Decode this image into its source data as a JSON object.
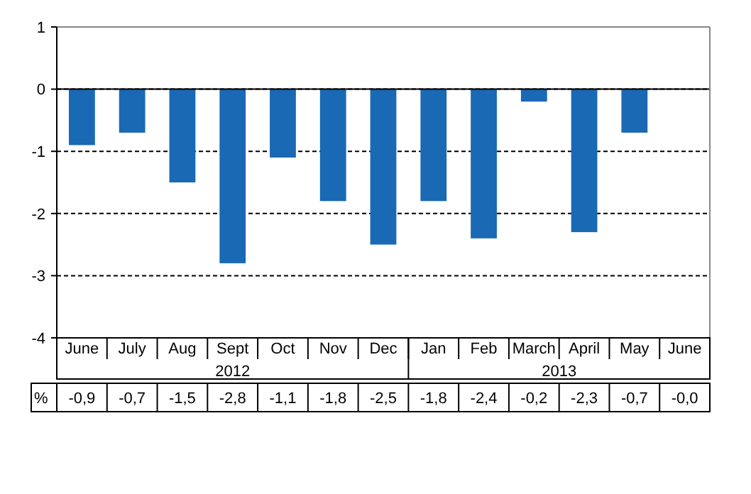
{
  "chart_data": {
    "type": "bar",
    "categories": [
      "June",
      "July",
      "Aug",
      "Sept",
      "Oct",
      "Nov",
      "Dec",
      "Jan",
      "Feb",
      "March",
      "April",
      "May",
      "June"
    ],
    "series": [
      {
        "name": "%",
        "color": "#1a69b4",
        "values": [
          -0.9,
          -0.7,
          -1.5,
          -2.8,
          -1.1,
          -1.8,
          -2.5,
          -1.8,
          -2.4,
          -0.2,
          -2.3,
          -0.7,
          -0.0
        ],
        "value_labels": [
          "-0,9",
          "-0,7",
          "-1,5",
          "-2,8",
          "-1,1",
          "-1,8",
          "-2,5",
          "-1,8",
          "-2,4",
          "-0,2",
          "-2,3",
          "-0,7",
          "-0,0"
        ]
      }
    ],
    "ylim": [
      -4,
      1
    ],
    "yticks": [
      -4,
      -3,
      -2,
      -1,
      0,
      1
    ],
    "grid": "y",
    "legend": false,
    "annotations": [
      "2012",
      "2013"
    ]
  }
}
